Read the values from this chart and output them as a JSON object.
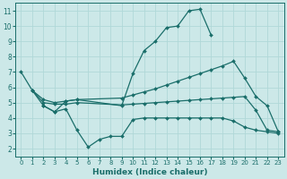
{
  "xlabel": "Humidex (Indice chaleur)",
  "xlim": [
    -0.5,
    23.5
  ],
  "ylim": [
    1.5,
    11.5
  ],
  "xticks": [
    0,
    1,
    2,
    3,
    4,
    5,
    6,
    7,
    8,
    9,
    10,
    11,
    12,
    13,
    14,
    15,
    16,
    17,
    18,
    19,
    20,
    21,
    22,
    23
  ],
  "yticks": [
    2,
    3,
    4,
    5,
    6,
    7,
    8,
    9,
    10,
    11
  ],
  "background_color": "#cce8e8",
  "line_color": "#1a6e6a",
  "grid_color": "#b0d8d8",
  "series": [
    {
      "x": [
        0,
        1,
        2,
        3,
        4,
        5,
        9,
        10,
        11,
        12,
        13,
        14,
        15,
        16,
        17,
        18
      ],
      "y": [
        7.0,
        5.8,
        4.8,
        4.4,
        5.1,
        5.2,
        4.8,
        6.9,
        8.4,
        9.0,
        9.9,
        10.0,
        11.0,
        11.1,
        9.4,
        null
      ]
    },
    {
      "x": [
        1,
        2,
        3,
        4,
        5,
        9,
        10,
        11,
        12,
        13,
        14,
        15,
        16,
        17,
        18,
        19,
        20,
        21,
        22,
        23
      ],
      "y": [
        5.8,
        5.2,
        5.0,
        5.1,
        5.2,
        5.3,
        5.5,
        5.7,
        5.9,
        6.15,
        6.4,
        6.65,
        6.9,
        7.15,
        7.4,
        7.7,
        6.6,
        5.4,
        4.8,
        3.1
      ]
    },
    {
      "x": [
        1,
        2,
        3,
        4,
        5,
        9,
        10,
        11,
        12,
        13,
        14,
        15,
        16,
        17,
        18,
        19,
        20,
        21,
        22,
        23
      ],
      "y": [
        5.8,
        5.0,
        4.9,
        4.9,
        5.0,
        4.85,
        4.9,
        4.95,
        5.0,
        5.05,
        5.1,
        5.15,
        5.2,
        5.25,
        5.3,
        5.35,
        5.4,
        4.5,
        3.2,
        3.1
      ]
    },
    {
      "x": [
        2,
        3,
        4,
        5,
        6,
        7,
        8,
        9,
        10,
        11,
        12,
        13,
        14,
        15,
        16,
        17,
        18,
        19,
        20,
        21,
        22,
        23
      ],
      "y": [
        4.8,
        4.4,
        4.6,
        3.2,
        2.1,
        2.6,
        2.8,
        2.8,
        3.9,
        4.0,
        4.0,
        4.0,
        4.0,
        4.0,
        4.0,
        4.0,
        4.0,
        3.8,
        3.4,
        3.2,
        3.1,
        3.0
      ]
    }
  ]
}
